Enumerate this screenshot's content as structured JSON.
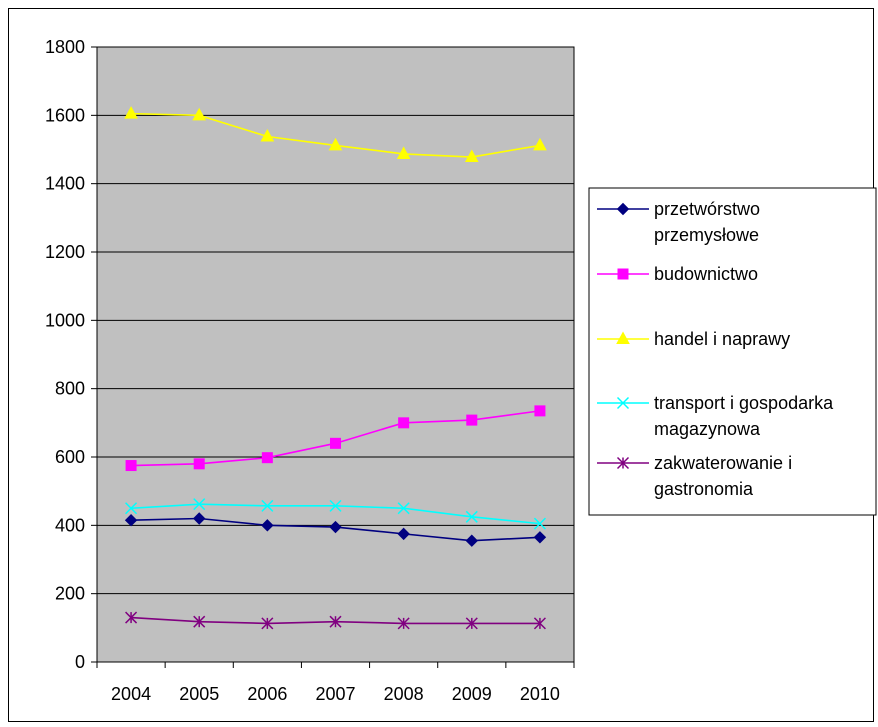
{
  "chart_data": {
    "type": "line",
    "title": "",
    "xlabel": "",
    "ylabel": "",
    "categories": [
      "2004",
      "2005",
      "2006",
      "2007",
      "2008",
      "2009",
      "2010"
    ],
    "ylim": [
      0,
      1800
    ],
    "yticks": [
      0,
      200,
      400,
      600,
      800,
      1000,
      1200,
      1400,
      1600,
      1800
    ],
    "grid": true,
    "plot_background": "#c0c0c0",
    "legend_position": "right",
    "series": [
      {
        "name": "przetwórstwo przemysłowe",
        "name_lines": [
          "przetwórstwo",
          "przemysłowe"
        ],
        "color": "#000080",
        "marker": "diamond",
        "values": [
          415,
          420,
          400,
          395,
          375,
          355,
          365
        ]
      },
      {
        "name": "budownictwo",
        "name_lines": [
          "budownictwo"
        ],
        "color": "#ff00ff",
        "marker": "square",
        "values": [
          575,
          580,
          598,
          640,
          700,
          708,
          735
        ]
      },
      {
        "name": "handel i naprawy",
        "name_lines": [
          "handel i naprawy"
        ],
        "color": "#ffff00",
        "marker": "triangle",
        "values": [
          1605,
          1600,
          1538,
          1512,
          1487,
          1478,
          1512
        ]
      },
      {
        "name": "transport i gospodarka magazynowa",
        "name_lines": [
          "transport i gospodarka",
          "magazynowa"
        ],
        "color": "#00ffff",
        "marker": "x",
        "values": [
          450,
          462,
          457,
          457,
          450,
          425,
          405
        ]
      },
      {
        "name": "zakwaterowanie i gastronomia",
        "name_lines": [
          "zakwaterowanie i",
          "gastronomia"
        ],
        "color": "#800080",
        "marker": "star",
        "values": [
          130,
          118,
          113,
          118,
          113,
          113,
          113
        ]
      }
    ]
  }
}
